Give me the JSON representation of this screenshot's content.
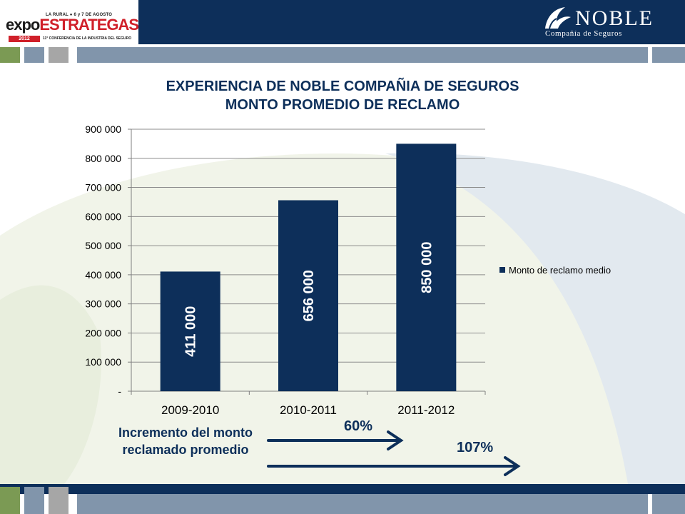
{
  "header": {
    "event_logo": {
      "top_text": "LA RURAL ● 6 y 7 DE AGOSTO",
      "word_a": "expo",
      "word_b": "ESTRATEGAS",
      "year": "2012",
      "subtitle": "11° CONFERENCIA DE LA INDUSTRIA DEL SEGURO"
    },
    "company_logo": {
      "name": "NOBLE",
      "subtitle": "Compañía de Seguros"
    }
  },
  "colors": {
    "navy": "#0d2f5a",
    "green": "#7b9a54",
    "slate": "#8195ab",
    "gray": "#a6a6a6"
  },
  "title_lines": [
    "EXPERIENCIA DE NOBLE COMPAÑIA DE SEGUROS",
    "MONTO PROMEDIO DE RECLAMO"
  ],
  "chart_data": {
    "type": "bar",
    "title": "EXPERIENCIA DE NOBLE COMPAÑIA DE SEGUROS MONTO PROMEDIO DE RECLAMO",
    "categories": [
      "2009-2010",
      "2010-2011",
      "2011-2012"
    ],
    "series": [
      {
        "name": "Monto de reclamo medio",
        "values": [
          411000,
          656000,
          850000
        ],
        "color": "#0d2f5a"
      }
    ],
    "data_labels": [
      "411 000",
      "656 000",
      "850 000"
    ],
    "y_ticks": [
      0,
      100000,
      200000,
      300000,
      400000,
      500000,
      600000,
      700000,
      800000,
      900000
    ],
    "y_tick_labels": [
      "-",
      "100 000",
      "200 000",
      "300 000",
      "400 000",
      "500 000",
      "600 000",
      "700 000",
      "800 000",
      "900 000"
    ],
    "ylim": [
      0,
      900000
    ],
    "xlabel": "",
    "ylabel": "",
    "grid": true,
    "legend": "right"
  },
  "annotations": {
    "increment_label": "Incremento del monto reclamado promedio",
    "pct_2011": "60%",
    "pct_2012": "107%"
  }
}
